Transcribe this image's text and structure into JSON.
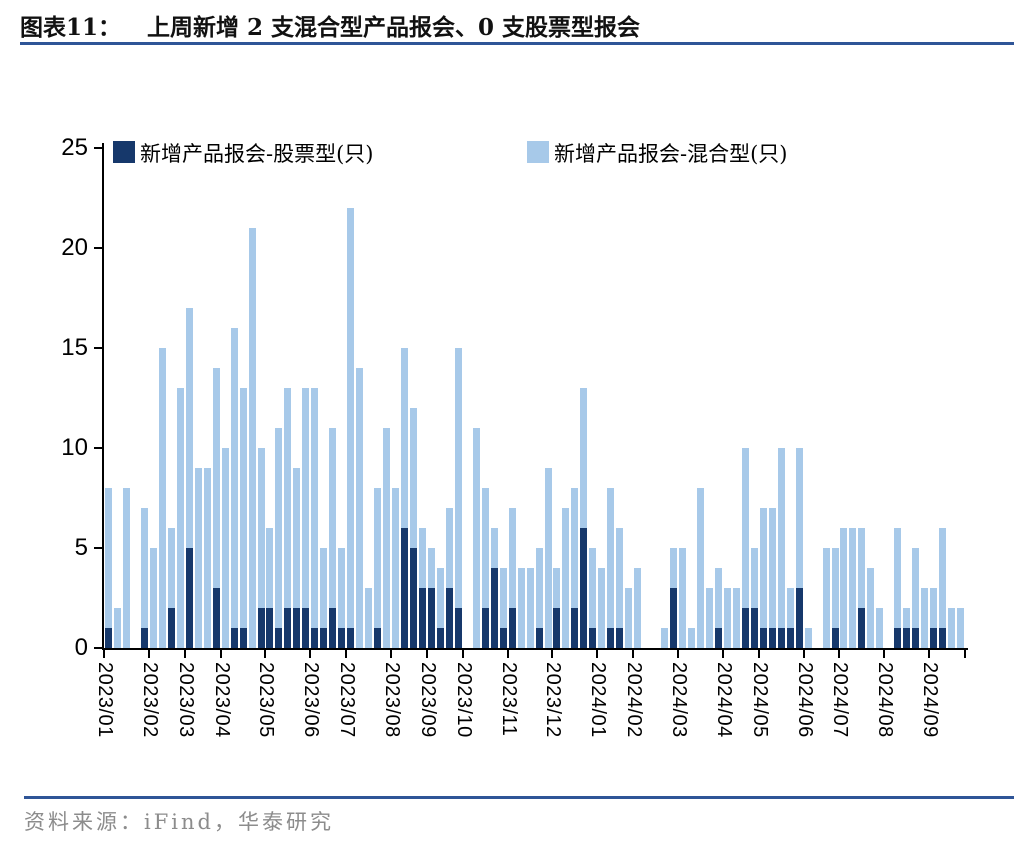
{
  "title": {
    "prefix": "图表11：",
    "text": "上周新增 2 支混合型产品报会、0 支股票型报会"
  },
  "source": "资料来源：iFind，华泰研究",
  "colors": {
    "equity_dark": "#16386B",
    "hybrid_light": "#A7C9E9",
    "rule_blue": "#2F5597",
    "axis_black": "#000000",
    "source_gray": "#8C8C8C"
  },
  "legend": [
    {
      "label": "新增产品报会-股票型(只)",
      "color": "#16386B"
    },
    {
      "label": "新增产品报会-混合型(只)",
      "color": "#A7C9E9"
    }
  ],
  "chart_data": {
    "type": "bar",
    "stacked": true,
    "title": "上周新增 2 支混合型产品报会、0 支股票型报会",
    "xlabel": "",
    "ylabel": "",
    "unit": "只",
    "ylim": [
      0,
      25
    ],
    "yticks": [
      0,
      5,
      10,
      15,
      20,
      25
    ],
    "grid": false,
    "legend_position": "top-inside",
    "series_names": [
      "新增产品报会-股票型(只)",
      "新增产品报会-混合型(只)"
    ],
    "bar_format": "[equity_dark, hybrid_light] stacked weekly counts",
    "months": [
      {
        "label": "2023/01",
        "bars": [
          [
            1,
            7
          ],
          [
            0,
            2
          ],
          [
            0,
            8
          ],
          [
            0,
            0
          ],
          [
            1,
            6
          ]
        ]
      },
      {
        "label": "2023/02",
        "bars": [
          [
            0,
            5
          ],
          [
            0,
            15
          ],
          [
            2,
            4
          ],
          [
            0,
            13
          ]
        ]
      },
      {
        "label": "2023/03",
        "bars": [
          [
            5,
            12
          ],
          [
            0,
            9
          ],
          [
            0,
            9
          ],
          [
            3,
            11
          ]
        ]
      },
      {
        "label": "2023/04",
        "bars": [
          [
            0,
            10
          ],
          [
            1,
            15
          ],
          [
            1,
            12
          ],
          [
            0,
            21
          ],
          [
            2,
            8
          ]
        ]
      },
      {
        "label": "2023/05",
        "bars": [
          [
            2,
            4
          ],
          [
            1,
            10
          ],
          [
            2,
            11
          ],
          [
            2,
            7
          ],
          [
            2,
            11
          ]
        ]
      },
      {
        "label": "2023/06",
        "bars": [
          [
            1,
            12
          ],
          [
            1,
            4
          ],
          [
            2,
            9
          ],
          [
            1,
            4
          ]
        ]
      },
      {
        "label": "2023/07",
        "bars": [
          [
            1,
            21
          ],
          [
            0,
            14
          ],
          [
            0,
            3
          ],
          [
            1,
            7
          ],
          [
            0,
            11
          ]
        ]
      },
      {
        "label": "2023/08",
        "bars": [
          [
            0,
            8
          ],
          [
            6,
            9
          ],
          [
            5,
            7
          ],
          [
            3,
            3
          ]
        ]
      },
      {
        "label": "2023/09",
        "bars": [
          [
            3,
            2
          ],
          [
            1,
            3
          ],
          [
            3,
            4
          ],
          [
            2,
            13
          ]
        ]
      },
      {
        "label": "2023/10",
        "bars": [
          [
            0,
            0
          ],
          [
            0,
            11
          ],
          [
            2,
            6
          ],
          [
            4,
            2
          ],
          [
            1,
            3
          ]
        ]
      },
      {
        "label": "2023/11",
        "bars": [
          [
            2,
            5
          ],
          [
            0,
            4
          ],
          [
            0,
            4
          ],
          [
            1,
            4
          ],
          [
            0,
            9
          ]
        ]
      },
      {
        "label": "2023/12",
        "bars": [
          [
            2,
            2
          ],
          [
            0,
            7
          ],
          [
            2,
            6
          ],
          [
            6,
            7
          ],
          [
            1,
            4
          ]
        ]
      },
      {
        "label": "2024/01",
        "bars": [
          [
            0,
            4
          ],
          [
            1,
            7
          ],
          [
            1,
            5
          ],
          [
            0,
            3
          ]
        ]
      },
      {
        "label": "2024/02",
        "bars": [
          [
            0,
            4
          ],
          [
            0,
            0
          ],
          [
            0,
            0
          ],
          [
            0,
            1
          ],
          [
            3,
            2
          ]
        ]
      },
      {
        "label": "2024/03",
        "bars": [
          [
            0,
            5
          ],
          [
            0,
            1
          ],
          [
            0,
            8
          ],
          [
            0,
            3
          ],
          [
            1,
            3
          ]
        ]
      },
      {
        "label": "2024/04",
        "bars": [
          [
            0,
            3
          ],
          [
            0,
            3
          ],
          [
            2,
            8
          ],
          [
            2,
            3
          ]
        ]
      },
      {
        "label": "2024/05",
        "bars": [
          [
            1,
            6
          ],
          [
            1,
            6
          ],
          [
            1,
            9
          ],
          [
            1,
            2
          ],
          [
            3,
            7
          ]
        ]
      },
      {
        "label": "2024/06",
        "bars": [
          [
            0,
            1
          ],
          [
            0,
            0
          ],
          [
            0,
            5
          ],
          [
            1,
            4
          ]
        ]
      },
      {
        "label": "2024/07",
        "bars": [
          [
            0,
            6
          ],
          [
            0,
            6
          ],
          [
            2,
            4
          ],
          [
            0,
            4
          ],
          [
            0,
            2
          ]
        ]
      },
      {
        "label": "2024/08",
        "bars": [
          [
            0,
            0
          ],
          [
            1,
            5
          ],
          [
            1,
            1
          ],
          [
            1,
            4
          ],
          [
            0,
            3
          ]
        ]
      },
      {
        "label": "2024/09",
        "bars": [
          [
            1,
            2
          ],
          [
            1,
            5
          ],
          [
            0,
            2
          ],
          [
            0,
            2
          ]
        ]
      }
    ]
  }
}
